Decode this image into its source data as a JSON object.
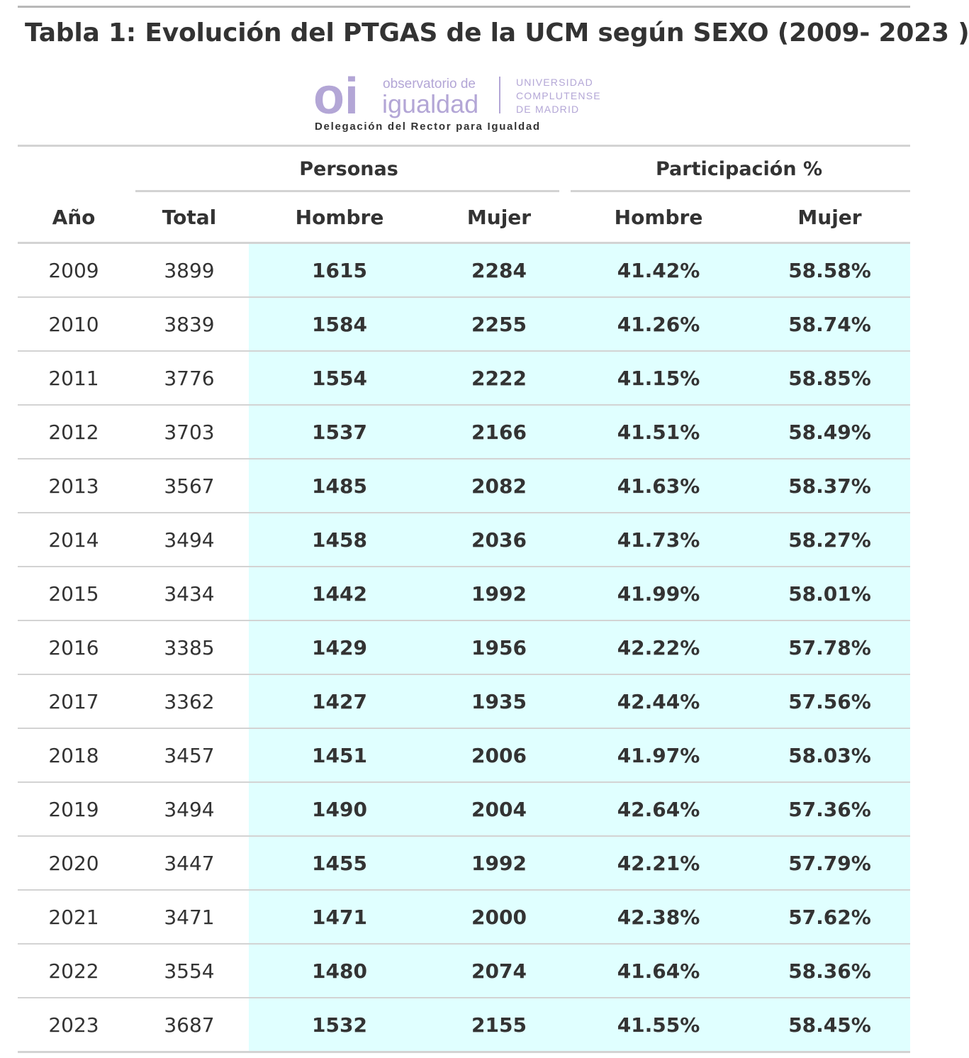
{
  "title": "Tabla 1: Evolución del PTGAS de la UCM según SEXO (2009- 2023 )",
  "logo": {
    "mark": "oi",
    "line1": "observatorio de",
    "line2": "igualdad",
    "uni1": "UNIVERSIDAD",
    "uni2": "COMPLUTENSE",
    "uni3": "DE MADRID",
    "tagline": "Delegación del Rector para Igualdad",
    "color": "#b3a6d6"
  },
  "colors": {
    "highlight": "#e0ffff",
    "rule": "#d3d3d3",
    "text": "#333333"
  },
  "chart_data": {
    "type": "table",
    "title": "Tabla 1: Evolución del PTGAS de la UCM según SEXO (2009- 2023 )",
    "spanners": [
      "Personas",
      "Participación %"
    ],
    "columns": [
      "Año",
      "Total",
      "Hombre",
      "Mujer",
      "Hombre",
      "Mujer"
    ],
    "rows": [
      [
        "2009",
        "3899",
        "1615",
        "2284",
        "41.42%",
        "58.58%"
      ],
      [
        "2010",
        "3839",
        "1584",
        "2255",
        "41.26%",
        "58.74%"
      ],
      [
        "2011",
        "3776",
        "1554",
        "2222",
        "41.15%",
        "58.85%"
      ],
      [
        "2012",
        "3703",
        "1537",
        "2166",
        "41.51%",
        "58.49%"
      ],
      [
        "2013",
        "3567",
        "1485",
        "2082",
        "41.63%",
        "58.37%"
      ],
      [
        "2014",
        "3494",
        "1458",
        "2036",
        "41.73%",
        "58.27%"
      ],
      [
        "2015",
        "3434",
        "1442",
        "1992",
        "41.99%",
        "58.01%"
      ],
      [
        "2016",
        "3385",
        "1429",
        "1956",
        "42.22%",
        "57.78%"
      ],
      [
        "2017",
        "3362",
        "1427",
        "1935",
        "42.44%",
        "57.56%"
      ],
      [
        "2018",
        "3457",
        "1451",
        "2006",
        "41.97%",
        "58.03%"
      ],
      [
        "2019",
        "3494",
        "1490",
        "2004",
        "42.64%",
        "57.36%"
      ],
      [
        "2020",
        "3447",
        "1455",
        "1992",
        "42.21%",
        "57.79%"
      ],
      [
        "2021",
        "3471",
        "1471",
        "2000",
        "42.38%",
        "57.62%"
      ],
      [
        "2022",
        "3554",
        "1480",
        "2074",
        "41.64%",
        "58.36%"
      ],
      [
        "2023",
        "3687",
        "1532",
        "2155",
        "41.55%",
        "58.45%"
      ]
    ]
  }
}
